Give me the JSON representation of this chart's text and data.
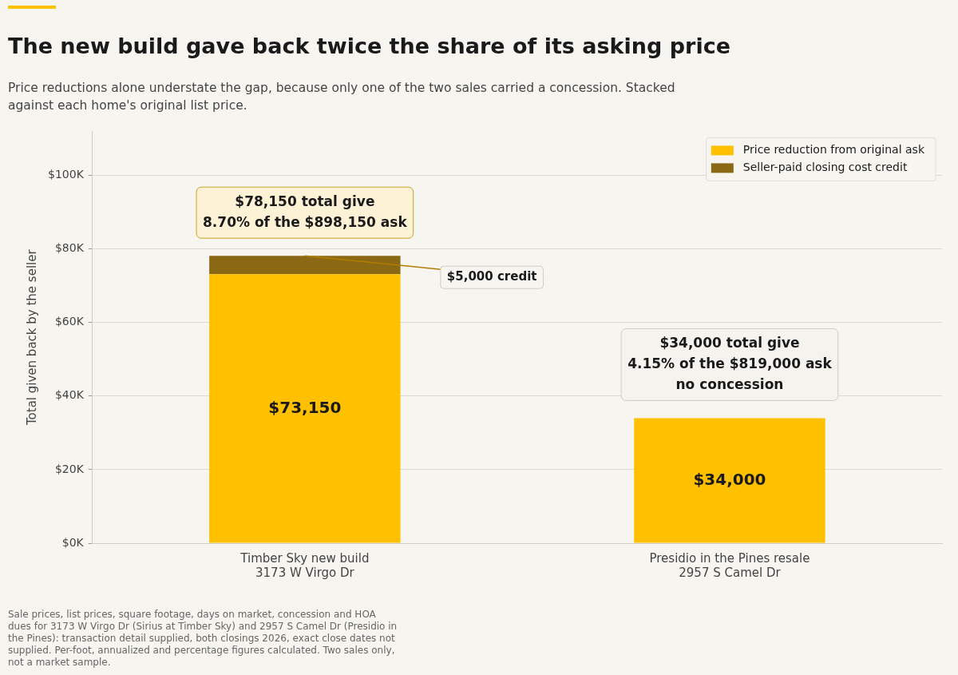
{
  "chart_data": {
    "type": "bar",
    "title": "The new build gave back twice the share of its asking price",
    "subtitle": "Price reductions alone understate the gap, because only one of the two sales carried a concession. Stacked against each home's original list price.",
    "ylabel": "Total given back by the seller",
    "categories": [
      "Timber Sky new build\n3173 W Virgo Dr",
      "Presidio in the Pines resale\n2957 S Camel Dr"
    ],
    "stacked": true,
    "series": [
      {
        "name": "Price reduction from original ask",
        "color": "#ffc000",
        "values": [
          73150,
          34000
        ],
        "value_labels": [
          "$73,150",
          "$34,000"
        ]
      },
      {
        "name": "Seller-paid closing cost credit",
        "color": "#8b6914",
        "values": [
          5000,
          null
        ]
      }
    ],
    "ylim": [
      0,
      112000
    ],
    "yticks": [
      {
        "value": 0,
        "label": "$0K"
      },
      {
        "value": 20000,
        "label": "$20K"
      },
      {
        "value": 40000,
        "label": "$40K"
      },
      {
        "value": 60000,
        "label": "$60K"
      },
      {
        "value": 80000,
        "label": "$80K"
      },
      {
        "value": 100000,
        "label": "$100K"
      }
    ],
    "grid": "y",
    "legend": "top right",
    "annotations": [
      {
        "text": "$78,150 total give\n8.70% of the $898,150 ask",
        "x": "Timber Sky new build\n3173 W Virgo Dr",
        "y": 78150
      },
      {
        "text": "$5,000 credit",
        "x": "Timber Sky new build\n3173 W Virgo Dr",
        "y": 78150
      },
      {
        "text": "$34,000 total give\n4.15% of the $819,000 ask\nno concession",
        "x": "Presidio in the Pines resale\n2957 S Camel Dr",
        "y": 34000
      },
      "Sale prices, list prices, square footage, days on market, concession and HOA dues for 3173 W Virgo Dr (Sirius at Timber Sky) and 2957 S Camel Dr (Presidio in the Pines): transaction detail supplied, both closings 2026, exact close dates not supplied. Per-foot, annualized and percentage figures calculated. Two sales only, not a market sample."
    ]
  }
}
